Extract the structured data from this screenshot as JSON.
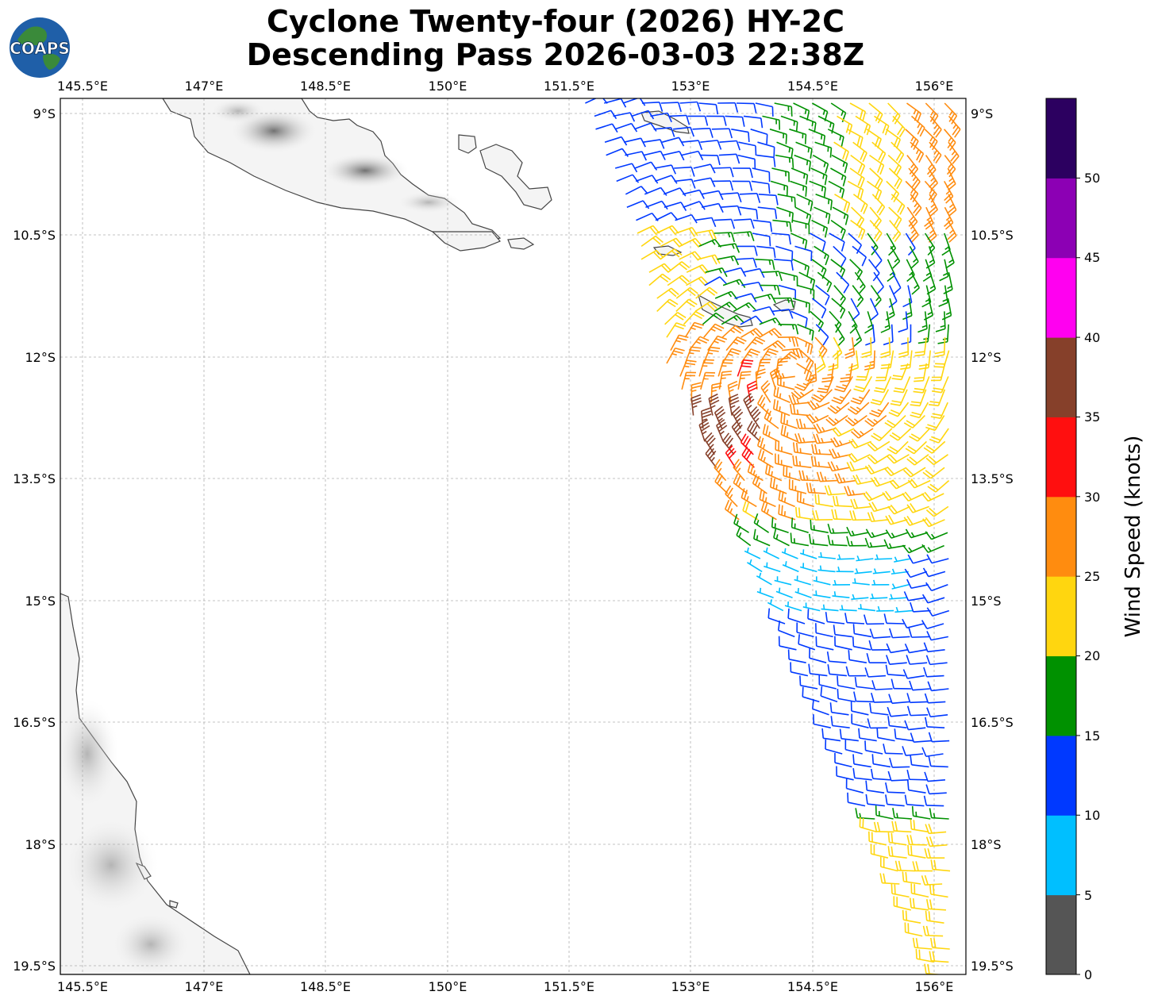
{
  "title_line1": "Cyclone Twenty-four (2026) HY-2C",
  "title_line2": "Descending Pass 2026-03-03 22:38Z",
  "logo_text": "COAPS",
  "lon_labels": [
    "145.5°E",
    "147°E",
    "148.5°E",
    "150°E",
    "151.5°E",
    "153°E",
    "154.5°E",
    "156°E"
  ],
  "lat_labels": [
    "9°S",
    "10.5°S",
    "12°S",
    "13.5°S",
    "15°S",
    "16.5°S",
    "18°S",
    "19.5°S"
  ],
  "colorbar": {
    "label": "Wind Speed (knots)",
    "ticks": [
      "0",
      "5",
      "10",
      "15",
      "20",
      "25",
      "30",
      "35",
      "40",
      "45",
      "50"
    ],
    "colors": [
      "#555555",
      "#00bfff",
      "#0039ff",
      "#009100",
      "#ffd60f",
      "#ff8c0f",
      "#ff0f0f",
      "#86402a",
      "#ff00f0",
      "#8c00b4",
      "#2c0060"
    ]
  },
  "chart_data": {
    "type": "wind-barb map",
    "lon_range": [
      145.3,
      156.4
    ],
    "lat_range": [
      -19.6,
      -8.8
    ],
    "speed_bins_knots": [
      0,
      5,
      10,
      15,
      20,
      25,
      30,
      35,
      40,
      45,
      50,
      55
    ]
  }
}
